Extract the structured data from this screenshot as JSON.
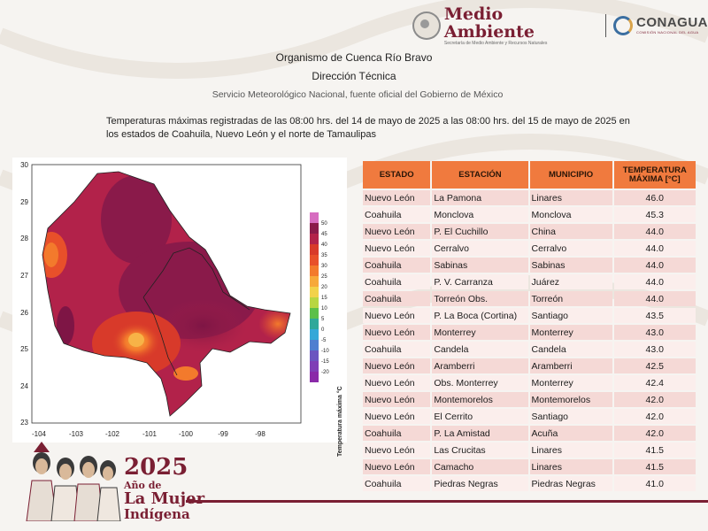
{
  "header": {
    "logo_medio_ambiente": "Medio Ambiente",
    "logo_medio_ambiente_sub": "Secretaría de Medio Ambiente y Recursos Naturales",
    "logo_conagua": "CONAGUA",
    "logo_conagua_sub": "COMISIÓN NACIONAL DEL AGUA",
    "line1": "Organismo de Cuenca Río Bravo",
    "line2": "Dirección Técnica",
    "line3": "Servicio Meteorológico Nacional, fuente oficial del Gobierno de México",
    "description": "Temperaturas máximas registradas de las 08:00 hrs. del 14 de mayo de 2025 a las 08:00 hrs. del 15 de mayo de 2025 en los estados de Coahuila, Nuevo León y el norte de Tamaulipas"
  },
  "map": {
    "lat_ticks": [
      "30",
      "29",
      "28",
      "27",
      "26",
      "25",
      "24",
      "23"
    ],
    "lon_ticks": [
      "-104",
      "-103",
      "-102",
      "-101",
      "-100",
      "-99",
      "-98"
    ],
    "colorbar_title": "Temperatura máxima °C",
    "colorbar_ticks": [
      "50",
      "45",
      "40",
      "35",
      "30",
      "25",
      "20",
      "15",
      "10",
      "5",
      "0",
      "-5",
      "-10",
      "-15",
      "-20"
    ],
    "colors": [
      "#d76dc0",
      "#8a1a4a",
      "#b2224a",
      "#d83a2a",
      "#e8502a",
      "#f37a2c",
      "#f7a93a",
      "#f2d24a",
      "#b8d642",
      "#5cc04a",
      "#2fa89a",
      "#35a8d8",
      "#4f7fd0",
      "#6b55c0",
      "#7f3fb6",
      "#8a2aa8"
    ]
  },
  "table": {
    "headers": [
      "ESTADO",
      "ESTACIÓN",
      "MUNICIPIO",
      "TEMPERATURA MÁXIMA [°C]"
    ],
    "rows": [
      [
        "Nuevo León",
        "La Pamona",
        "Linares",
        "46.0"
      ],
      [
        "Coahuila",
        "Monclova",
        "Monclova",
        "45.3"
      ],
      [
        "Nuevo León",
        "P. El Cuchillo",
        "China",
        "44.0"
      ],
      [
        "Nuevo León",
        "Cerralvo",
        "Cerralvo",
        "44.0"
      ],
      [
        "Coahuila",
        "Sabinas",
        "Sabinas",
        "44.0"
      ],
      [
        "Coahuila",
        "P. V. Carranza",
        "Juárez",
        "44.0"
      ],
      [
        "Coahuila",
        "Torreón Obs.",
        "Torreón",
        "44.0"
      ],
      [
        "Nuevo León",
        "P. La Boca (Cortina)",
        "Santiago",
        "43.5"
      ],
      [
        "Nuevo León",
        "Monterrey",
        "Monterrey",
        "43.0"
      ],
      [
        "Coahuila",
        "Candela",
        "Candela",
        "43.0"
      ],
      [
        "Nuevo León",
        "Aramberri",
        "Aramberri",
        "42.5"
      ],
      [
        "Nuevo León",
        "Obs. Monterrey",
        "Monterrey",
        "42.4"
      ],
      [
        "Nuevo León",
        "Montemorelos",
        "Montemorelos",
        "42.0"
      ],
      [
        "Nuevo León",
        "El Cerrito",
        "Santiago",
        "42.0"
      ],
      [
        "Coahuila",
        "P. La Amistad",
        "Acuña",
        "42.0"
      ],
      [
        "Nuevo León",
        "Las Crucitas",
        "Linares",
        "41.5"
      ],
      [
        "Nuevo León",
        "Camacho",
        "Linares",
        "41.5"
      ],
      [
        "Coahuila",
        "Piedras Negras",
        "Piedras Negras",
        "41.0"
      ]
    ]
  },
  "footer": {
    "year": "2025",
    "line1": "Año de",
    "line2": "La Mujer",
    "line3": "Indígena"
  }
}
